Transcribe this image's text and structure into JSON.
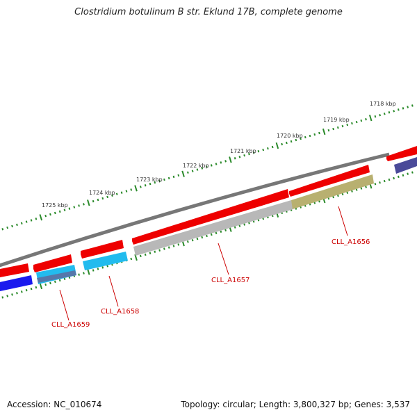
{
  "title": "Clostridium botulinum B str. Eklund 17B, complete genome",
  "footer": {
    "accession": "Accession: NC_010674",
    "summary": "Topology: circular; Length: 3,800,327 bp; Genes: 3,537"
  },
  "scale_labels": [
    "1725 kbp",
    "1724 kbp",
    "1723 kbp",
    "1722 kbp",
    "1721 kbp",
    "1720 kbp",
    "1719 kbp",
    "1718 kbp"
  ],
  "gene_labels": [
    "CLL_A1659",
    "CLL_A1658",
    "CLL_A1657",
    "CLL_A1656"
  ],
  "colors": {
    "backbone": "#777777",
    "forward_gene": "#ee0000",
    "tick": "#2a8a2a",
    "label": "#cc0000",
    "blue": "#1a1aee",
    "cyan": "#22bbee",
    "grey": "#b8b8b8",
    "olive": "#b8b070",
    "purple": "#4a4a99"
  }
}
